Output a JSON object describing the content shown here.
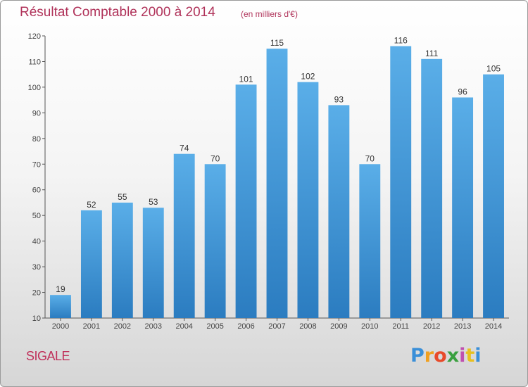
{
  "chart_data": {
    "type": "bar",
    "title": "Résultat Comptable 2000 à 2014",
    "subtitle": "(en milliers d'€)",
    "categories": [
      "2000",
      "2001",
      "2002",
      "2003",
      "2004",
      "2005",
      "2006",
      "2007",
      "2008",
      "2009",
      "2010",
      "2011",
      "2012",
      "2013",
      "2014"
    ],
    "values": [
      19,
      52,
      55,
      53,
      74,
      70,
      101,
      115,
      102,
      93,
      70,
      116,
      111,
      96,
      105
    ],
    "y_ticks": [
      10,
      20,
      30,
      40,
      50,
      60,
      70,
      80,
      90,
      100,
      110,
      120
    ],
    "ylim": [
      10,
      120
    ],
    "xlabel": "",
    "ylabel": "",
    "grid": false,
    "bar_color_top": "#5aaee8",
    "bar_color_bottom": "#2b7cc0"
  },
  "place_name": "SIGALE",
  "logo": {
    "letters": [
      "P",
      "r",
      "o",
      "x",
      "i",
      "t",
      "i"
    ],
    "colors": [
      "#3a8fd8",
      "#f0a020",
      "#e84a2a",
      "#3aa040",
      "#c050b0",
      "#e8c020",
      "#3a8fd8"
    ]
  }
}
